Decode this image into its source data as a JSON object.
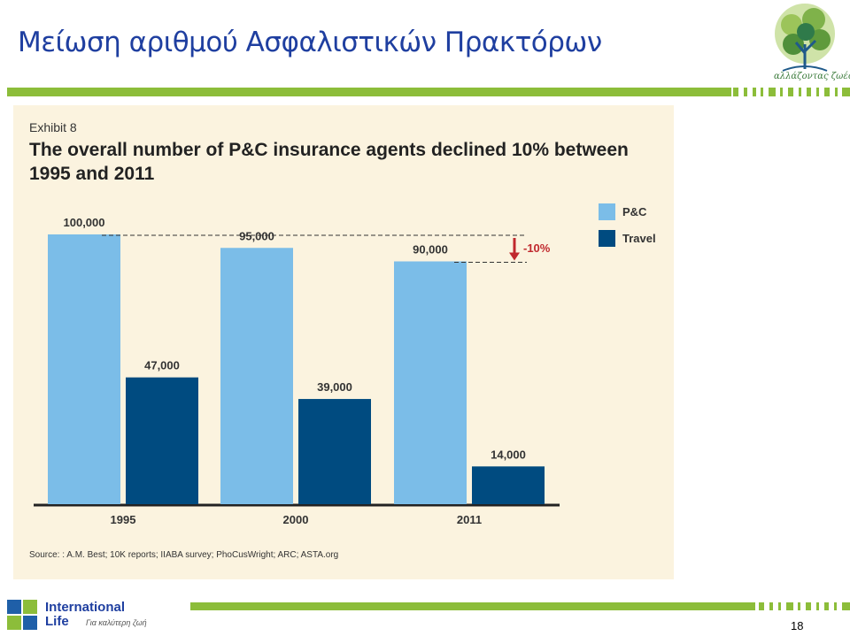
{
  "slide": {
    "title": "Μείωση αριθμού Ασφαλιστικών Πρακτόρων",
    "logo_tagline": "αλλάζοντας ζωές",
    "page_number": "18"
  },
  "exhibit": {
    "label": "Exhibit 8",
    "headline": "The overall number of P&C insurance agents declined 10% between 1995 and 2011",
    "source": "Source: : A.M. Best; 10K reports; IIABA survey; PhoCusWright; ARC; ASTA.org"
  },
  "footer": {
    "brand_line1": "International",
    "brand_line2": "Life",
    "brand_tagline": "Για καλύτερη ζωή"
  },
  "colors": {
    "pc": "#7bbde8",
    "travel": "#004b80",
    "title": "#1f3fa0",
    "green_bar": "#8cbd3a",
    "arrow": "#c0282d",
    "panel": "#fbf3df"
  },
  "chart_data": {
    "type": "bar",
    "categories": [
      "1995",
      "2000",
      "2011"
    ],
    "series": [
      {
        "name": "P&C",
        "values": [
          100000,
          95000,
          90000
        ],
        "labels": [
          "100,000",
          "95,000",
          "90,000"
        ]
      },
      {
        "name": "Travel",
        "values": [
          47000,
          39000,
          14000
        ],
        "labels": [
          "47,000",
          "39,000",
          "14,000"
        ]
      }
    ],
    "ylim": [
      0,
      100000
    ],
    "annotation": "-10%",
    "legend": "right",
    "grid": false
  }
}
